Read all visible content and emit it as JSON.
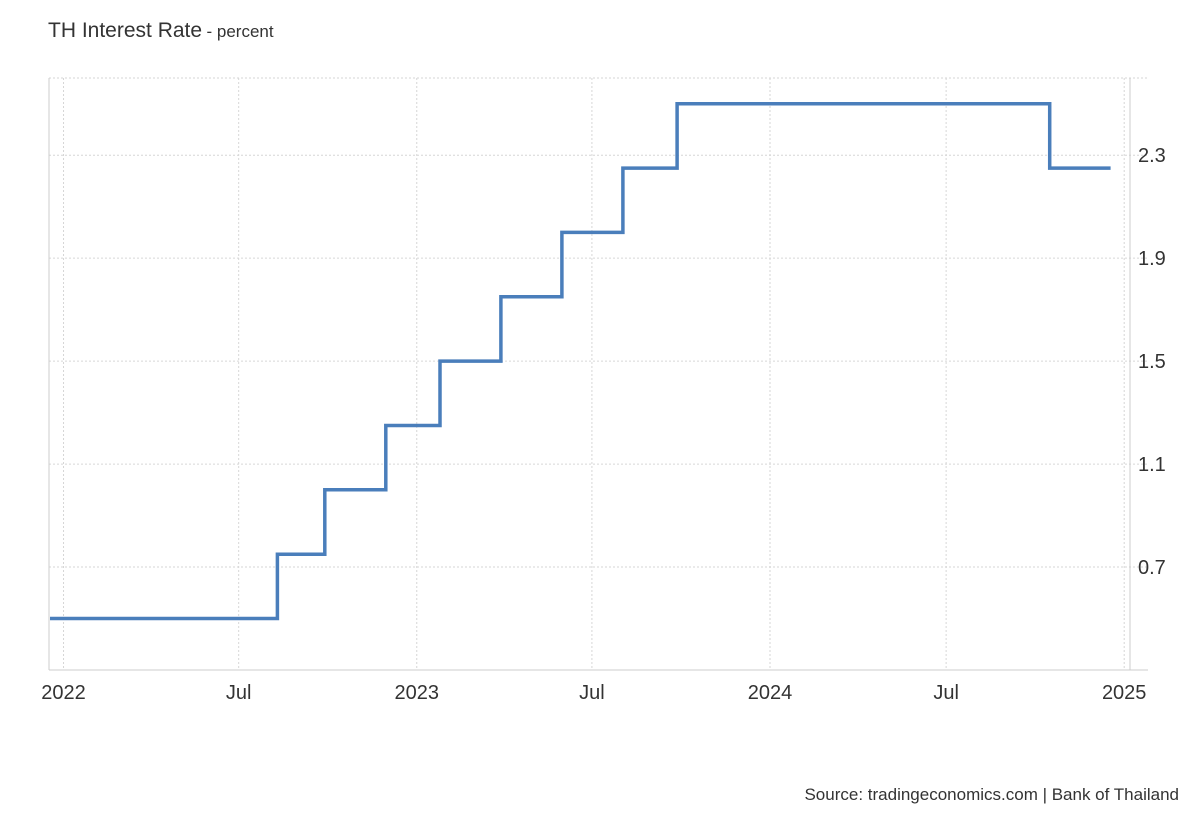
{
  "header": {
    "title": "TH Interest Rate",
    "subtitle": "- percent"
  },
  "source": "Source: tradingeconomics.com | Bank of Thailand",
  "chart_data": {
    "type": "line",
    "step": true,
    "title": "TH Interest Rate",
    "subtitle": "- percent",
    "xlabel": "",
    "ylabel": "",
    "x_ticks": [
      "2022",
      "Jul",
      "2023",
      "Jul",
      "2024",
      "Jul",
      "2025"
    ],
    "x_tick_dates": [
      "2022-01-01",
      "2022-07-01",
      "2023-01-01",
      "2023-07-01",
      "2024-01-01",
      "2024-07-01",
      "2025-01-01"
    ],
    "y_ticks": [
      0.7,
      1.1,
      1.5,
      1.9,
      2.3
    ],
    "y_tick_labels": [
      "0.7",
      "1.1",
      "1.5",
      "1.9",
      "2.3"
    ],
    "ylim": [
      0.3,
      2.6
    ],
    "xlim": [
      "2021-12-17",
      "2025-01-07"
    ],
    "grid": true,
    "legend": "none",
    "series": [
      {
        "color": "#4a7ebb",
        "points": [
          {
            "date": "2021-12-18",
            "value": 0.5
          },
          {
            "date": "2022-08-10",
            "value": 0.75
          },
          {
            "date": "2022-09-28",
            "value": 1.0
          },
          {
            "date": "2022-11-30",
            "value": 1.25
          },
          {
            "date": "2023-01-25",
            "value": 1.5
          },
          {
            "date": "2023-03-29",
            "value": 1.75
          },
          {
            "date": "2023-05-31",
            "value": 2.0
          },
          {
            "date": "2023-08-02",
            "value": 2.25
          },
          {
            "date": "2023-09-27",
            "value": 2.5
          },
          {
            "date": "2024-10-16",
            "value": 2.25
          },
          {
            "date": "2024-12-18",
            "value": 2.25
          }
        ]
      }
    ]
  }
}
